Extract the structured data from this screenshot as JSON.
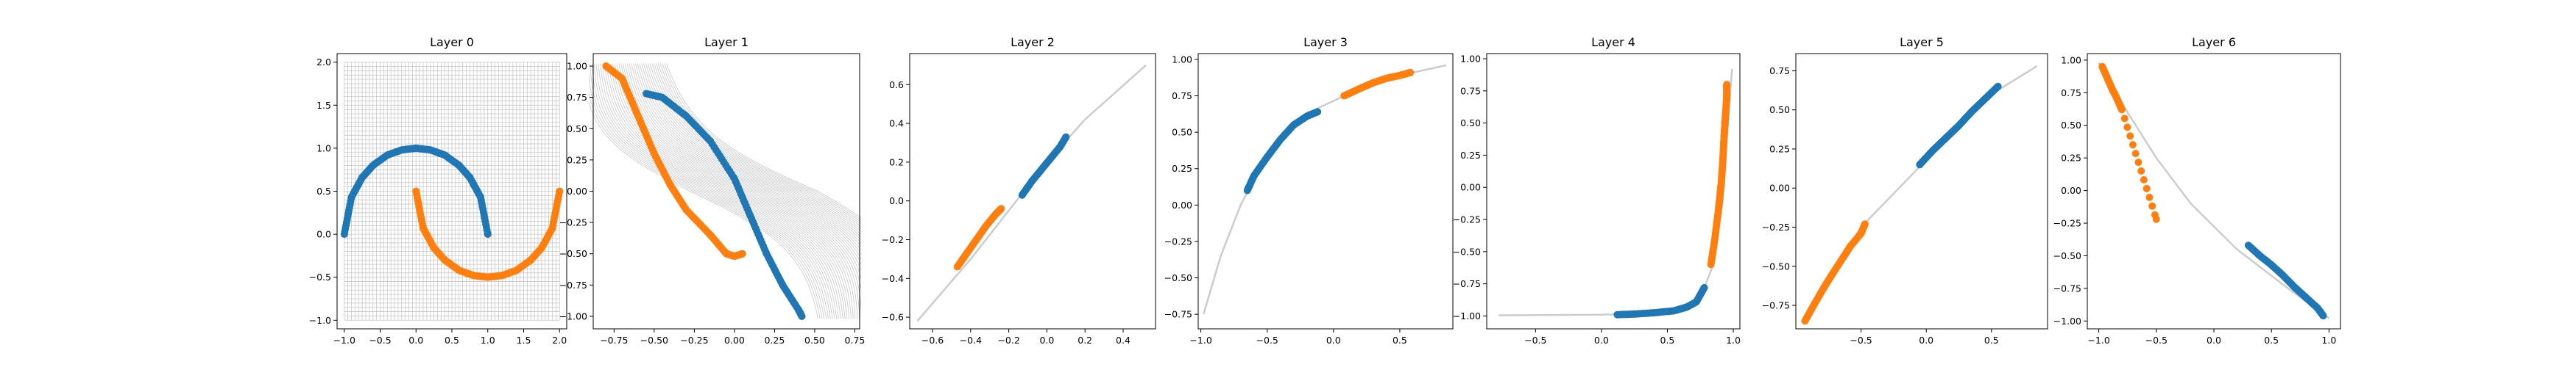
{
  "chart_data": [
    {
      "type": "scatter",
      "title": "Layer 0",
      "xlim": [
        -1.1,
        2.1
      ],
      "ylim": [
        -1.1,
        2.1
      ],
      "xticks": [
        -1.0,
        -0.5,
        0.0,
        0.5,
        1.0,
        1.5,
        2.0
      ],
      "yticks": [
        -1.0,
        -0.5,
        0.0,
        0.5,
        1.0,
        1.5,
        2.0
      ],
      "tick_labels": {
        "x": [
          "−1.0",
          "−0.5",
          "0.0",
          "0.5",
          "1.0",
          "1.5",
          "2.0"
        ],
        "y": [
          "−1.0",
          "−0.5",
          "0.0",
          "0.5",
          "1.0",
          "1.5",
          "2.0"
        ]
      },
      "background": "input grid over [-1, 2] x [-1, 2]",
      "series": [
        {
          "color": "#1f77b4",
          "shape": "upper half-moon",
          "points": [
            [
              -1.0,
              0.0
            ],
            [
              -0.9,
              0.43
            ],
            [
              -0.75,
              0.66
            ],
            [
              -0.6,
              0.8
            ],
            [
              -0.4,
              0.92
            ],
            [
              -0.2,
              0.98
            ],
            [
              0.0,
              1.0
            ],
            [
              0.2,
              0.98
            ],
            [
              0.4,
              0.92
            ],
            [
              0.6,
              0.8
            ],
            [
              0.75,
              0.66
            ],
            [
              0.9,
              0.43
            ],
            [
              1.0,
              0.0
            ]
          ]
        },
        {
          "color": "#ff7f0e",
          "shape": "lower half-moon",
          "points": [
            [
              0.0,
              0.5
            ],
            [
              0.1,
              0.07
            ],
            [
              0.25,
              -0.16
            ],
            [
              0.4,
              -0.3
            ],
            [
              0.6,
              -0.42
            ],
            [
              0.8,
              -0.48
            ],
            [
              1.0,
              -0.5
            ],
            [
              1.2,
              -0.48
            ],
            [
              1.4,
              -0.42
            ],
            [
              1.6,
              -0.3
            ],
            [
              1.75,
              -0.16
            ],
            [
              1.9,
              0.07
            ],
            [
              2.0,
              0.5
            ]
          ]
        }
      ]
    },
    {
      "type": "scatter",
      "title": "Layer 1",
      "xlim": [
        -0.88,
        0.78
      ],
      "ylim": [
        -1.1,
        1.1
      ],
      "xticks": [
        -0.75,
        -0.5,
        -0.25,
        0.0,
        0.25,
        0.5,
        0.75
      ],
      "yticks": [
        -1.0,
        -0.75,
        -0.5,
        -0.25,
        0.0,
        0.25,
        0.5,
        0.75,
        1.0
      ],
      "tick_labels": {
        "x": [
          "−0.75",
          "−0.50",
          "−0.25",
          "0.00",
          "0.25",
          "0.50",
          "0.75"
        ],
        "y": [
          "−1.00",
          "−0.75",
          "−0.50",
          "−0.25",
          "0.00",
          "0.25",
          "0.50",
          "0.75",
          "1.00"
        ]
      },
      "background": "transformed grid (grey sigmoid sheet)",
      "series": [
        {
          "color": "#1f77b4",
          "points": [
            [
              -0.55,
              0.78
            ],
            [
              -0.45,
              0.75
            ],
            [
              -0.3,
              0.6
            ],
            [
              -0.15,
              0.4
            ],
            [
              0.0,
              0.1
            ],
            [
              0.1,
              -0.2
            ],
            [
              0.2,
              -0.5
            ],
            [
              0.3,
              -0.75
            ],
            [
              0.4,
              -0.95
            ],
            [
              0.42,
              -1.0
            ]
          ]
        },
        {
          "color": "#ff7f0e",
          "points": [
            [
              -0.8,
              1.0
            ],
            [
              -0.7,
              0.9
            ],
            [
              -0.6,
              0.6
            ],
            [
              -0.5,
              0.3
            ],
            [
              -0.4,
              0.05
            ],
            [
              -0.3,
              -0.15
            ],
            [
              -0.15,
              -0.35
            ],
            [
              -0.05,
              -0.5
            ],
            [
              0.0,
              -0.52
            ],
            [
              0.05,
              -0.5
            ]
          ]
        }
      ]
    },
    {
      "type": "scatter",
      "title": "Layer 2",
      "xlim": [
        -0.72,
        0.57
      ],
      "ylim": [
        -0.66,
        0.76
      ],
      "xticks": [
        -0.6,
        -0.4,
        -0.2,
        0.0,
        0.2,
        0.4
      ],
      "yticks": [
        -0.6,
        -0.4,
        -0.2,
        0.0,
        0.2,
        0.4,
        0.6
      ],
      "tick_labels": {
        "x": [
          "−0.6",
          "−0.4",
          "−0.2",
          "0.0",
          "0.2",
          "0.4"
        ],
        "y": [
          "−0.6",
          "−0.4",
          "−0.2",
          "0.0",
          "0.2",
          "0.4",
          "0.6"
        ]
      },
      "manifold": [
        [
          -0.68,
          -0.62
        ],
        [
          -0.4,
          -0.3
        ],
        [
          -0.2,
          -0.05
        ],
        [
          0.0,
          0.2
        ],
        [
          0.2,
          0.42
        ],
        [
          0.52,
          0.7
        ]
      ],
      "series": [
        {
          "color": "#1f77b4",
          "points": [
            [
              -0.13,
              0.03
            ],
            [
              -0.08,
              0.1
            ],
            [
              -0.03,
              0.16
            ],
            [
              0.02,
              0.22
            ],
            [
              0.07,
              0.28
            ],
            [
              0.1,
              0.33
            ]
          ]
        },
        {
          "color": "#ff7f0e",
          "points": [
            [
              -0.47,
              -0.34
            ],
            [
              -0.42,
              -0.27
            ],
            [
              -0.37,
              -0.2
            ],
            [
              -0.32,
              -0.13
            ],
            [
              -0.27,
              -0.07
            ],
            [
              -0.24,
              -0.04
            ]
          ]
        }
      ]
    },
    {
      "type": "scatter",
      "title": "Layer 3",
      "xlim": [
        -1.02,
        0.9
      ],
      "ylim": [
        -0.85,
        1.04
      ],
      "xticks": [
        -1.0,
        -0.5,
        0.0,
        0.5
      ],
      "yticks": [
        -0.75,
        -0.5,
        -0.25,
        0.0,
        0.25,
        0.5,
        0.75,
        1.0
      ],
      "tick_labels": {
        "x": [
          "−1.0",
          "−0.5",
          "0.0",
          "0.5"
        ],
        "y": [
          "−0.75",
          "−0.50",
          "−0.25",
          "0.00",
          "0.25",
          "0.50",
          "0.75",
          "1.00"
        ]
      },
      "manifold": [
        [
          -0.98,
          -0.75
        ],
        [
          -0.85,
          -0.35
        ],
        [
          -0.7,
          0.0
        ],
        [
          -0.5,
          0.35
        ],
        [
          -0.2,
          0.63
        ],
        [
          0.2,
          0.8
        ],
        [
          0.6,
          0.91
        ],
        [
          0.85,
          0.96
        ]
      ],
      "series": [
        {
          "color": "#1f77b4",
          "points": [
            [
              -0.65,
              0.1
            ],
            [
              -0.6,
              0.2
            ],
            [
              -0.5,
              0.33
            ],
            [
              -0.4,
              0.45
            ],
            [
              -0.3,
              0.55
            ],
            [
              -0.2,
              0.61
            ],
            [
              -0.12,
              0.64
            ]
          ]
        },
        {
          "color": "#ff7f0e",
          "points": [
            [
              0.08,
              0.75
            ],
            [
              0.2,
              0.8
            ],
            [
              0.3,
              0.84
            ],
            [
              0.4,
              0.87
            ],
            [
              0.5,
              0.89
            ],
            [
              0.58,
              0.91
            ]
          ]
        }
      ]
    },
    {
      "type": "scatter",
      "title": "Layer 4",
      "xlim": [
        -0.87,
        1.05
      ],
      "ylim": [
        -1.1,
        1.04
      ],
      "xticks": [
        -0.5,
        0.0,
        0.5,
        1.0
      ],
      "yticks": [
        -1.0,
        -0.75,
        -0.5,
        -0.25,
        0.0,
        0.25,
        0.5,
        0.75,
        1.0
      ],
      "tick_labels": {
        "x": [
          "−0.5",
          "0.0",
          "0.5",
          "1.0"
        ],
        "y": [
          "−1.00",
          "−0.75",
          "−0.50",
          "−0.25",
          "0.00",
          "0.25",
          "0.50",
          "0.75",
          "1.00"
        ]
      },
      "manifold": [
        [
          -0.78,
          -0.995
        ],
        [
          -0.4,
          -0.993
        ],
        [
          0.0,
          -0.99
        ],
        [
          0.3,
          -0.98
        ],
        [
          0.6,
          -0.95
        ],
        [
          0.75,
          -0.85
        ],
        [
          0.85,
          -0.6
        ],
        [
          0.92,
          -0.1
        ],
        [
          0.96,
          0.5
        ],
        [
          0.99,
          0.92
        ]
      ],
      "series": [
        {
          "color": "#1f77b4",
          "points": [
            [
              0.12,
              -0.99
            ],
            [
              0.25,
              -0.985
            ],
            [
              0.4,
              -0.975
            ],
            [
              0.55,
              -0.96
            ],
            [
              0.65,
              -0.93
            ],
            [
              0.72,
              -0.89
            ],
            [
              0.78,
              -0.78
            ]
          ]
        },
        {
          "color": "#ff7f0e",
          "points": [
            [
              0.83,
              -0.6
            ],
            [
              0.86,
              -0.4
            ],
            [
              0.89,
              -0.15
            ],
            [
              0.91,
              0.05
            ],
            [
              0.92,
              0.2
            ],
            [
              0.93,
              0.4
            ],
            [
              0.94,
              0.55
            ],
            [
              0.95,
              0.7
            ],
            [
              0.95,
              0.8
            ]
          ]
        }
      ]
    },
    {
      "type": "scatter",
      "title": "Layer 5",
      "xlim": [
        -1.0,
        0.93
      ],
      "ylim": [
        -0.9,
        0.86
      ],
      "xticks": [
        -0.5,
        0.0,
        0.5
      ],
      "yticks": [
        -0.75,
        -0.5,
        -0.25,
        0.0,
        0.25,
        0.5,
        0.75
      ],
      "tick_labels": {
        "x": [
          "−0.5",
          "0.0",
          "0.5"
        ],
        "y": [
          "−0.75",
          "−0.50",
          "−0.25",
          "0.00",
          "0.25",
          "0.50",
          "0.75"
        ]
      },
      "manifold": [
        [
          -0.95,
          -0.85
        ],
        [
          -0.5,
          -0.25
        ],
        [
          0.0,
          0.18
        ],
        [
          0.5,
          0.6
        ],
        [
          0.85,
          0.78
        ]
      ],
      "series": [
        {
          "color": "#1f77b4",
          "points": [
            [
              -0.05,
              0.15
            ],
            [
              0.05,
              0.24
            ],
            [
              0.15,
              0.32
            ],
            [
              0.25,
              0.4
            ],
            [
              0.35,
              0.49
            ],
            [
              0.45,
              0.57
            ],
            [
              0.55,
              0.65
            ]
          ]
        },
        {
          "color": "#ff7f0e",
          "points": [
            [
              -0.93,
              -0.85
            ],
            [
              -0.85,
              -0.73
            ],
            [
              -0.78,
              -0.63
            ],
            [
              -0.72,
              -0.55
            ],
            [
              -0.65,
              -0.46
            ],
            [
              -0.58,
              -0.37
            ],
            [
              -0.5,
              -0.29
            ],
            [
              -0.47,
              -0.23
            ]
          ]
        }
      ]
    },
    {
      "type": "scatter",
      "title": "Layer 6",
      "xlim": [
        -1.1,
        1.1
      ],
      "ylim": [
        -1.06,
        1.05
      ],
      "xticks": [
        -1.0,
        -0.5,
        0.0,
        0.5,
        1.0
      ],
      "yticks": [
        -1.0,
        -0.75,
        -0.5,
        -0.25,
        0.0,
        0.25,
        0.5,
        0.75,
        1.0
      ],
      "tick_labels": {
        "x": [
          "−1.0",
          "−0.5",
          "0.0",
          "0.5",
          "1.0"
        ],
        "y": [
          "−1.00",
          "−0.75",
          "−0.50",
          "−0.25",
          "0.00",
          "0.25",
          "0.50",
          "0.75",
          "1.00"
        ]
      },
      "manifold": [
        [
          -1.0,
          0.98
        ],
        [
          -0.75,
          0.6
        ],
        [
          -0.5,
          0.25
        ],
        [
          -0.2,
          -0.1
        ],
        [
          0.2,
          -0.45
        ],
        [
          0.6,
          -0.72
        ],
        [
          1.0,
          -0.98
        ]
      ],
      "series": [
        {
          "color": "#1f77b4",
          "points": [
            [
              0.3,
              -0.42
            ],
            [
              0.4,
              -0.5
            ],
            [
              0.5,
              -0.57
            ],
            [
              0.6,
              -0.65
            ],
            [
              0.7,
              -0.74
            ],
            [
              0.8,
              -0.82
            ],
            [
              0.9,
              -0.9
            ],
            [
              0.95,
              -0.96
            ]
          ]
        },
        {
          "color": "#ff7f0e",
          "points": [
            [
              -0.97,
              0.95
            ],
            [
              -0.94,
              0.89
            ],
            [
              -0.91,
              0.83
            ],
            [
              -0.88,
              0.77
            ],
            [
              -0.85,
              0.72
            ],
            [
              -0.8,
              0.62
            ],
            [
              -0.5,
              -0.22
            ]
          ]
        }
      ]
    }
  ]
}
